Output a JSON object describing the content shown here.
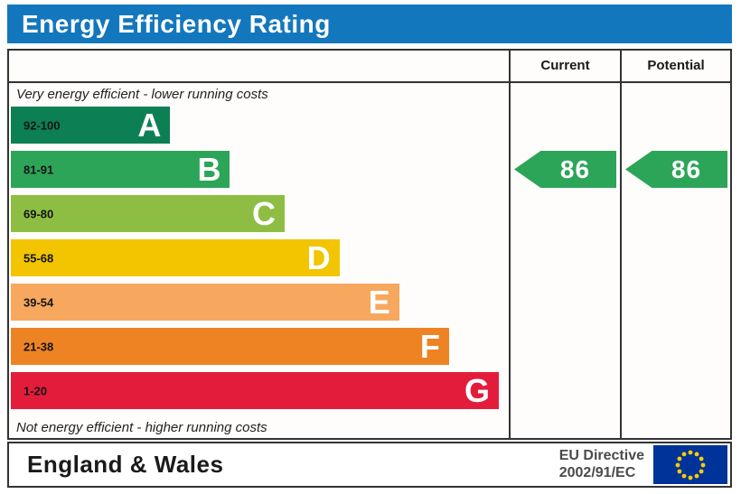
{
  "title": "Energy Efficiency Rating",
  "chart_data": {
    "type": "bar",
    "title": "Energy Efficiency Rating",
    "top_note": "Very energy efficient - lower running costs",
    "bottom_note": "Not energy efficient - higher running costs",
    "categories": [
      "A",
      "B",
      "C",
      "D",
      "E",
      "F",
      "G"
    ],
    "bands": [
      {
        "letter": "A",
        "range": "92-100",
        "color": "#0c8054",
        "length_pct": 32
      },
      {
        "letter": "B",
        "range": "81-91",
        "color": "#2ca558",
        "length_pct": 44
      },
      {
        "letter": "C",
        "range": "69-80",
        "color": "#8dbe43",
        "length_pct": 55
      },
      {
        "letter": "D",
        "range": "55-68",
        "color": "#f2c500",
        "length_pct": 66
      },
      {
        "letter": "E",
        "range": "39-54",
        "color": "#f7a85e",
        "length_pct": 78
      },
      {
        "letter": "F",
        "range": "21-38",
        "color": "#ee8324",
        "length_pct": 88
      },
      {
        "letter": "G",
        "range": "1-20",
        "color": "#e41c3c",
        "length_pct": 98
      }
    ],
    "columns": {
      "current": "Current",
      "potential": "Potential"
    },
    "current": {
      "value": "86",
      "band": "B",
      "color": "#2ca558"
    },
    "potential": {
      "value": "86",
      "band": "B",
      "color": "#2ca558"
    }
  },
  "footer": {
    "region": "England & Wales",
    "directive_line1": "EU Directive",
    "directive_line2": "2002/91/EC"
  },
  "colors": {
    "title_bar": "#1377bd",
    "border": "#333333",
    "eu_flag_bg": "#003399",
    "eu_flag_stars": "#ffcc00"
  }
}
